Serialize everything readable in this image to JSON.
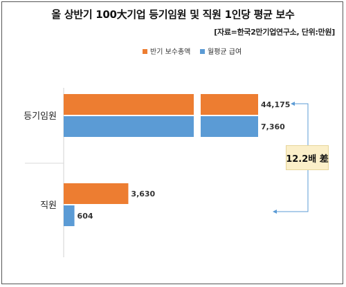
{
  "title": "올 상반기 100大기업 등기임원 및 직원 1인당 평균 보수",
  "source": "[자료=한국2만기업연구소, 단위:만원]",
  "annotation": "12.2배 差",
  "colors": {
    "orange": "#ED7D31",
    "blue": "#5B9BD5",
    "annotation_bg": "#FBEFC9",
    "bracket": "#5B9BD5"
  },
  "chart_data": {
    "type": "bar",
    "orientation": "horizontal",
    "categories": [
      "등기임원",
      "직원"
    ],
    "series": [
      {
        "name": "반기 보수총액",
        "values": [
          44175,
          3630
        ]
      },
      {
        "name": "월평균 급여",
        "values": [
          7360,
          604
        ]
      }
    ],
    "data_labels": [
      [
        "44,175",
        "3,630"
      ],
      [
        "7,360",
        "604"
      ]
    ],
    "axis_break": true,
    "legend_position": "top",
    "grid": false
  }
}
